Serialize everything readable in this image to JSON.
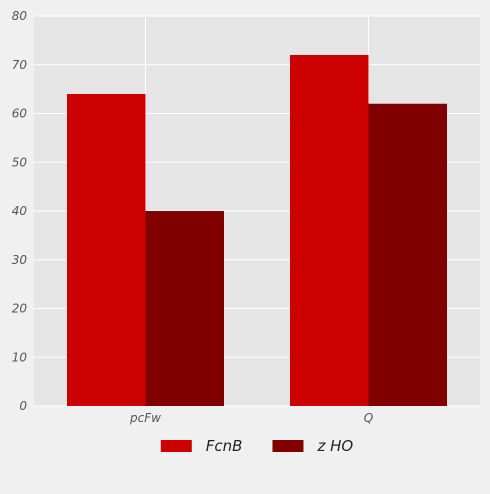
{
  "chart_data": {
    "type": "bar",
    "categories": [
      "pcFw",
      "Q"
    ],
    "series": [
      {
        "name": "FcnB",
        "values": [
          64,
          72
        ],
        "color": "#cc0000"
      },
      {
        "name": "z HO",
        "values": [
          40,
          62
        ],
        "color": "#800000"
      }
    ],
    "title": "",
    "xlabel": "",
    "ylabel": "",
    "ylim": [
      0,
      80
    ],
    "yticks": [
      0,
      10,
      20,
      30,
      40,
      50,
      60,
      70,
      80
    ],
    "grid": true,
    "legend_position": "bottom-center",
    "colors": {
      "page_background": "#f0f0f0",
      "plot_background": "#e5e5e5",
      "grid": "#ffffff",
      "tick_text": "#555555"
    }
  }
}
